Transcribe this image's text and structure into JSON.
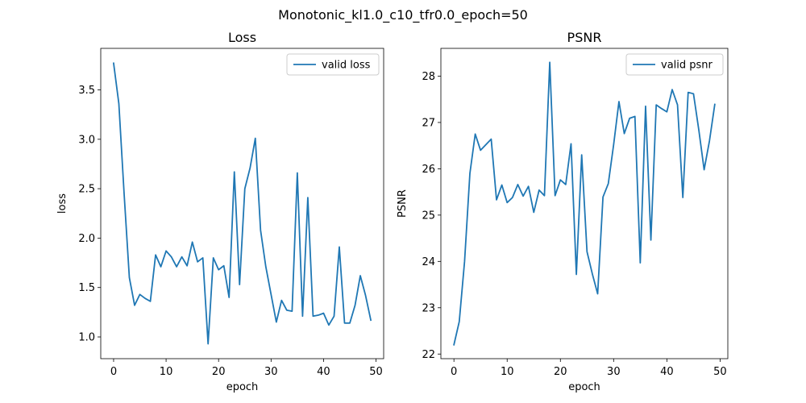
{
  "suptitle": "Monotonic_kl1.0_c10_tfr0.0_epoch=50",
  "chart_data": [
    {
      "type": "line",
      "title": "Loss",
      "xlabel": "epoch",
      "ylabel": "loss",
      "xlim": [
        -2.45,
        51.45
      ],
      "ylim": [
        0.78,
        3.92
      ],
      "xticks": [
        0,
        10,
        20,
        30,
        40,
        50
      ],
      "yticks": [
        1.0,
        1.5,
        2.0,
        2.5,
        3.0,
        3.5
      ],
      "ytick_labels": [
        "1.0",
        "1.5",
        "2.0",
        "2.5",
        "3.0",
        "3.5"
      ],
      "legend_position": "top-right",
      "grid": false,
      "series": [
        {
          "name": "valid loss",
          "color": "#1f77b4",
          "x": [
            0,
            1,
            2,
            3,
            4,
            5,
            6,
            7,
            8,
            9,
            10,
            11,
            12,
            13,
            14,
            15,
            16,
            17,
            18,
            19,
            20,
            21,
            22,
            23,
            24,
            25,
            26,
            27,
            28,
            29,
            30,
            31,
            32,
            33,
            34,
            35,
            36,
            37,
            38,
            39,
            40,
            41,
            42,
            43,
            44,
            45,
            46,
            47,
            48,
            49
          ],
          "y": [
            3.77,
            3.36,
            2.45,
            1.6,
            1.32,
            1.43,
            1.39,
            1.36,
            1.83,
            1.71,
            1.87,
            1.81,
            1.71,
            1.81,
            1.72,
            1.96,
            1.76,
            1.8,
            0.93,
            1.8,
            1.68,
            1.72,
            1.4,
            2.67,
            1.53,
            2.5,
            2.71,
            3.01,
            2.08,
            1.71,
            1.43,
            1.15,
            1.37,
            1.27,
            1.26,
            2.66,
            1.21,
            2.41,
            1.21,
            1.22,
            1.24,
            1.12,
            1.21,
            1.91,
            1.14,
            1.14,
            1.32,
            1.62,
            1.42,
            1.17
          ]
        }
      ]
    },
    {
      "type": "line",
      "title": "PSNR",
      "xlabel": "epoch",
      "ylabel": "PSNR",
      "xlim": [
        -2.45,
        51.45
      ],
      "ylim": [
        21.9,
        28.6
      ],
      "xticks": [
        0,
        10,
        20,
        30,
        40,
        50
      ],
      "yticks": [
        22,
        23,
        24,
        25,
        26,
        27,
        28
      ],
      "ytick_labels": [
        "22",
        "23",
        "24",
        "25",
        "26",
        "27",
        "28"
      ],
      "legend_position": "top-right",
      "grid": false,
      "series": [
        {
          "name": "valid psnr",
          "color": "#1f77b4",
          "x": [
            0,
            1,
            2,
            3,
            4,
            5,
            6,
            7,
            8,
            9,
            10,
            11,
            12,
            13,
            14,
            15,
            16,
            17,
            18,
            19,
            20,
            21,
            22,
            23,
            24,
            25,
            26,
            27,
            28,
            29,
            30,
            31,
            32,
            33,
            34,
            35,
            36,
            37,
            38,
            39,
            40,
            41,
            42,
            43,
            44,
            45,
            46,
            47,
            48,
            49
          ],
          "y": [
            22.2,
            22.7,
            24.0,
            25.9,
            26.75,
            26.4,
            26.52,
            26.64,
            25.33,
            25.65,
            25.27,
            25.38,
            25.66,
            25.41,
            25.62,
            25.06,
            25.54,
            25.42,
            28.3,
            25.42,
            25.76,
            25.66,
            26.54,
            23.72,
            26.3,
            24.21,
            23.73,
            23.3,
            25.39,
            25.68,
            26.52,
            27.45,
            26.76,
            27.09,
            27.13,
            23.97,
            27.35,
            24.46,
            27.38,
            27.3,
            27.23,
            27.71,
            27.38,
            25.38,
            27.65,
            27.62,
            26.84,
            25.98,
            26.6,
            27.39
          ]
        }
      ]
    }
  ]
}
